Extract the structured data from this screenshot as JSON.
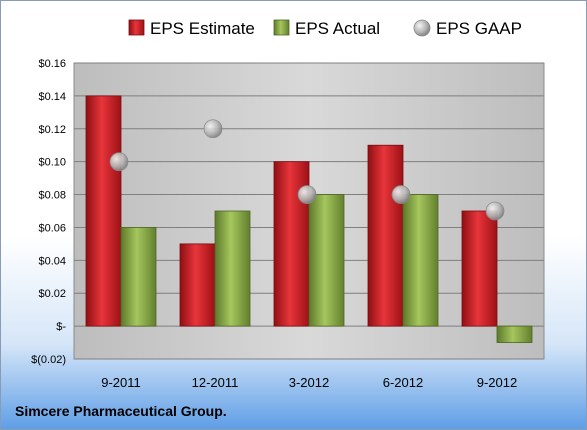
{
  "chart_data": {
    "type": "bar",
    "categories": [
      "9-2011",
      "12-2011",
      "3-2012",
      "6-2012",
      "9-2012"
    ],
    "series": [
      {
        "name": "EPS Estimate",
        "kind": "bar",
        "color": "#d41f26",
        "values": [
          0.14,
          0.05,
          0.1,
          0.11,
          0.07
        ]
      },
      {
        "name": "EPS Actual",
        "kind": "bar",
        "color": "#8fb04a",
        "values": [
          0.06,
          0.07,
          0.08,
          0.08,
          -0.01
        ]
      },
      {
        "name": "EPS GAAP",
        "kind": "marker",
        "color": "#b0b0b0",
        "values": [
          0.1,
          0.12,
          0.08,
          0.08,
          0.07
        ]
      }
    ],
    "ylim": [
      -0.02,
      0.16
    ],
    "yticks": [
      -0.02,
      0,
      0.02,
      0.04,
      0.06,
      0.08,
      0.1,
      0.12,
      0.14,
      0.16
    ],
    "ytick_labels": [
      "$(0.02)",
      "$-",
      "$0.02",
      "$0.04",
      "$0.06",
      "$0.08",
      "$0.10",
      "$0.12",
      "$0.14",
      "$0.16"
    ],
    "legend_position": "top",
    "grid": true
  },
  "footer": {
    "company": "Simcere Pharmaceutical Group."
  }
}
